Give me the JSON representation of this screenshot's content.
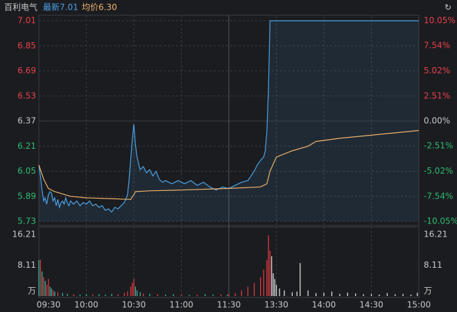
{
  "header": {
    "name": "百利电气",
    "latest": "最新7.01",
    "average": "均价6.30"
  },
  "chart_data": {
    "type": "intraday",
    "xlim": [
      0,
      240
    ],
    "xticks": [
      {
        "value": 0,
        "label": "09:30"
      },
      {
        "value": 30,
        "label": "10:00"
      },
      {
        "value": 60,
        "label": "10:30"
      },
      {
        "value": 90,
        "label": "11:00"
      },
      {
        "value": 120,
        "label": "11:30"
      },
      {
        "value": 150,
        "label": "13:30"
      },
      {
        "value": 180,
        "label": "14:00"
      },
      {
        "value": 210,
        "label": "14:30"
      },
      {
        "value": 240,
        "label": "15:00"
      }
    ],
    "ylim": [
      5.73,
      7.01
    ],
    "yticks": [
      7.01,
      6.85,
      6.69,
      6.53,
      6.37,
      6.21,
      6.05,
      5.89,
      5.73
    ],
    "y2lim": [
      -10.05,
      10.05
    ],
    "y2ticks": [
      {
        "value": 10.05,
        "label": "10.05%"
      },
      {
        "value": 7.54,
        "label": "7.54%"
      },
      {
        "value": 5.02,
        "label": "5.02%"
      },
      {
        "value": 2.51,
        "label": "2.51%"
      },
      {
        "value": 0,
        "label": "0.00%"
      },
      {
        "value": -2.51,
        "label": "-2.51%"
      },
      {
        "value": -5.02,
        "label": "-5.02%"
      },
      {
        "value": -7.54,
        "label": "-7.54%"
      },
      {
        "value": -10.05,
        "label": "-10.05%"
      }
    ],
    "up_color": "#e8414a",
    "down_color": "#2dbd73",
    "flat_color": "#c8c8c8",
    "grid": true,
    "series": [
      {
        "color": "#4aa3e8",
        "fill": true,
        "x": [
          0,
          1,
          2,
          3,
          4,
          5,
          6,
          7,
          8,
          9,
          10,
          11,
          12,
          13,
          14,
          15,
          16,
          17,
          18,
          19,
          20,
          22,
          24,
          26,
          28,
          30,
          32,
          34,
          36,
          38,
          40,
          42,
          44,
          46,
          48,
          50,
          52,
          54,
          56,
          57,
          58,
          59,
          60,
          61,
          62,
          63,
          64,
          66,
          68,
          70,
          72,
          74,
          76,
          78,
          80,
          84,
          88,
          92,
          96,
          100,
          104,
          108,
          112,
          116,
          120,
          124,
          128,
          132,
          136,
          138,
          140,
          142,
          143,
          144,
          145,
          146,
          240
        ],
        "values": [
          6.09,
          6.02,
          5.93,
          5.86,
          5.88,
          5.84,
          5.9,
          5.92,
          5.91,
          5.86,
          5.88,
          5.83,
          5.87,
          5.82,
          5.85,
          5.86,
          5.84,
          5.88,
          5.85,
          5.83,
          5.86,
          5.84,
          5.86,
          5.83,
          5.85,
          5.84,
          5.86,
          5.83,
          5.84,
          5.82,
          5.83,
          5.8,
          5.81,
          5.79,
          5.82,
          5.81,
          5.83,
          5.85,
          5.9,
          6.0,
          6.12,
          6.25,
          6.35,
          6.22,
          6.14,
          6.1,
          6.06,
          6.08,
          6.04,
          6.06,
          6.02,
          6.05,
          6.0,
          5.98,
          5.99,
          5.97,
          5.99,
          5.97,
          5.99,
          5.96,
          5.98,
          5.95,
          5.93,
          5.95,
          5.94,
          5.96,
          5.98,
          5.99,
          6.05,
          6.09,
          6.12,
          6.14,
          6.18,
          6.3,
          6.57,
          7.01,
          7.01
        ]
      },
      {
        "color": "#f0b46a",
        "fill": false,
        "x": [
          0,
          3,
          6,
          10,
          20,
          30,
          45,
          58,
          60,
          61,
          70,
          90,
          120,
          140,
          144,
          146,
          150,
          160,
          170,
          175,
          190,
          210,
          240
        ],
        "values": [
          6.09,
          6.0,
          5.94,
          5.92,
          5.89,
          5.88,
          5.875,
          5.87,
          5.9,
          5.92,
          5.925,
          5.93,
          5.94,
          5.95,
          5.97,
          6.05,
          6.14,
          6.18,
          6.21,
          6.24,
          6.26,
          6.28,
          6.31
        ]
      }
    ],
    "volume": {
      "ylim": [
        0,
        16.21
      ],
      "yticks": [
        16.21,
        8.11,
        {
          "value": 0,
          "label": "万"
        }
      ],
      "x": [
        0,
        1,
        2,
        3,
        4,
        5,
        6,
        7,
        8,
        9,
        10,
        12,
        15,
        18,
        22,
        26,
        30,
        34,
        38,
        42,
        46,
        50,
        54,
        56,
        58,
        59,
        60,
        61,
        62,
        64,
        66,
        70,
        75,
        80,
        85,
        90,
        95,
        100,
        105,
        110,
        115,
        119,
        120,
        124,
        128,
        132,
        136,
        140,
        142,
        144,
        145,
        146,
        147,
        148,
        149,
        150,
        152,
        155,
        160,
        163,
        165,
        170,
        175,
        180,
        185,
        190,
        195,
        200,
        205,
        210,
        215,
        220,
        225,
        230,
        235,
        239
      ],
      "values": [
        9.5,
        9.6,
        6.5,
        5.0,
        4.0,
        3.0,
        4.5,
        2.5,
        2.0,
        1.5,
        1.2,
        1.0,
        0.8,
        0.6,
        0.5,
        0.4,
        0.5,
        0.4,
        0.5,
        0.4,
        0.6,
        0.5,
        0.8,
        1.2,
        2.5,
        3.5,
        4.5,
        2.5,
        1.5,
        1.0,
        0.7,
        0.6,
        0.5,
        0.4,
        0.5,
        0.4,
        0.3,
        0.4,
        0.5,
        0.4,
        0.5,
        0.4,
        0.6,
        0.8,
        1.5,
        2.5,
        3.5,
        5.0,
        7.0,
        9.5,
        16.0,
        12.0,
        10.5,
        6.0,
        4.5,
        3.0,
        2.0,
        1.5,
        1.0,
        1.2,
        8.7,
        1.5,
        0.8,
        0.9,
        1.2,
        0.6,
        0.9,
        0.7,
        0.5,
        0.6,
        0.4,
        0.8,
        0.5,
        0.6,
        0.4,
        0.9
      ],
      "colors": [
        "#39b9a3",
        "#e0393e",
        "#39b9a3",
        "#e0393e",
        "#39b9a3",
        "#e0393e",
        "#e0393e",
        "#39b9a3",
        "#39b9a3",
        "#e0393e",
        "#39b9a3",
        "#e0393e",
        "#39b9a3",
        "#39b9a3",
        "#e0393e",
        "#39b9a3",
        "#39b9a3",
        "#e0393e",
        "#39b9a3",
        "#39b9a3",
        "#39b9a3",
        "#e0393e",
        "#e0393e",
        "#e0393e",
        "#e0393e",
        "#e0393e",
        "#e0393e",
        "#39b9a3",
        "#39b9a3",
        "#39b9a3",
        "#e0393e",
        "#39b9a3",
        "#e0393e",
        "#39b9a3",
        "#39b9a3",
        "#e0393e",
        "#39b9a3",
        "#e0393e",
        "#39b9a3",
        "#39b9a3",
        "#e0393e",
        "#39b9a3",
        "#e0393e",
        "#e0393e",
        "#e0393e",
        "#e0393e",
        "#e0393e",
        "#e0393e",
        "#e0393e",
        "#e0393e",
        "#e0393e",
        "#e0393e",
        "#dcdcdc",
        "#dcdcdc",
        "#dcdcdc",
        "#dcdcdc",
        "#dcdcdc",
        "#dcdcdc",
        "#dcdcdc",
        "#dcdcdc",
        "#dcdcdc",
        "#dcdcdc",
        "#dcdcdc",
        "#dcdcdc",
        "#dcdcdc",
        "#dcdcdc",
        "#dcdcdc",
        "#dcdcdc",
        "#dcdcdc",
        "#dcdcdc",
        "#dcdcdc",
        "#dcdcdc",
        "#dcdcdc",
        "#dcdcdc",
        "#dcdcdc",
        "#dcdcdc"
      ]
    }
  }
}
